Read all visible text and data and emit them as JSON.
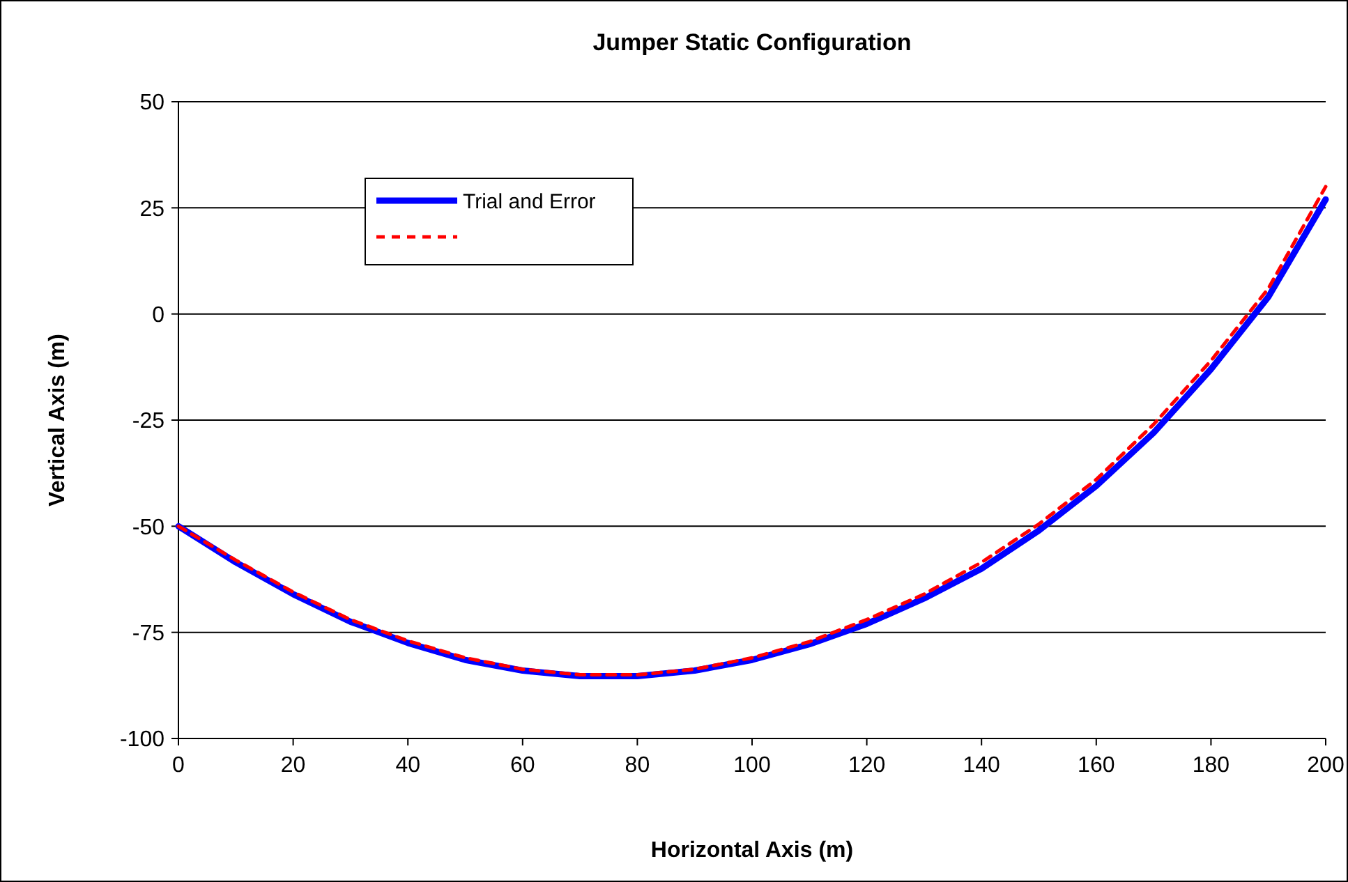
{
  "chart_data": {
    "type": "line",
    "title": "Jumper Static Configuration",
    "xlabel": "Horizontal Axis (m)",
    "ylabel": "Vertical Axis (m)",
    "x": [
      0,
      10,
      20,
      30,
      40,
      50,
      60,
      70,
      80,
      90,
      100,
      110,
      120,
      130,
      140,
      150,
      160,
      170,
      180,
      190,
      200
    ],
    "series": [
      {
        "name": "Trial and Error",
        "color": "#0000ff",
        "line_style": "solid",
        "values": [
          -50,
          -58.5,
          -66,
          -72.5,
          -77.5,
          -81.5,
          -84,
          -85.3,
          -85.3,
          -84,
          -81.5,
          -77.8,
          -73,
          -67,
          -60,
          -51,
          -40.5,
          -28,
          -13,
          4,
          27
        ]
      },
      {
        "color": "#ff0000",
        "line_style": "dashed",
        "values": [
          -50,
          -58,
          -65.5,
          -72,
          -77,
          -81,
          -83.7,
          -85,
          -85,
          -83.7,
          -81,
          -77.2,
          -72,
          -66,
          -58.5,
          -49.5,
          -39,
          -26,
          -11,
          6,
          30
        ]
      }
    ],
    "xlim": [
      0,
      200
    ],
    "xticks": [
      0,
      20,
      40,
      60,
      80,
      100,
      120,
      140,
      160,
      180,
      200
    ],
    "ylim": [
      -100,
      50
    ],
    "yticks": [
      -100,
      -75,
      -50,
      -25,
      0,
      25,
      50
    ],
    "grid": "y",
    "legend": "top left"
  }
}
